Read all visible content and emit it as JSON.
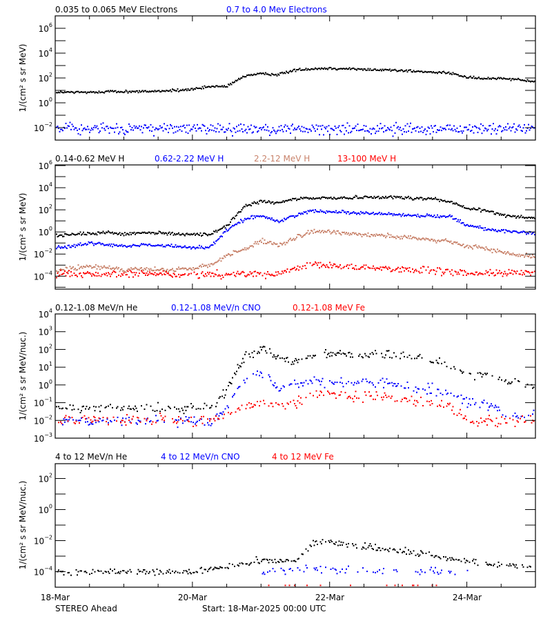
{
  "chart_data": [
    {
      "type": "scatter",
      "panel": "electrons",
      "ylabel": "1/(cm² s sr MeV)",
      "yscale": "log",
      "ylim": [
        0.001,
        10000000.0
      ],
      "ytick_exponents": [
        6,
        4,
        2,
        0,
        -2
      ],
      "xlim": [
        "2025-03-18T00:00",
        "2025-03-25T00:00"
      ],
      "x": [
        "2025-03-18T00:00",
        "2025-03-18T06:00",
        "2025-03-18T12:00",
        "2025-03-18T18:00",
        "2025-03-19T00:00",
        "2025-03-19T06:00",
        "2025-03-19T12:00",
        "2025-03-19T18:00",
        "2025-03-20T00:00",
        "2025-03-20T06:00",
        "2025-03-20T12:00",
        "2025-03-20T18:00",
        "2025-03-21T00:00",
        "2025-03-21T06:00",
        "2025-03-21T12:00",
        "2025-03-21T18:00",
        "2025-03-22T00:00",
        "2025-03-22T06:00",
        "2025-03-22T12:00",
        "2025-03-22T18:00",
        "2025-03-23T00:00",
        "2025-03-23T06:00",
        "2025-03-23T12:00",
        "2025-03-23T18:00",
        "2025-03-24T00:00",
        "2025-03-24T06:00",
        "2025-03-24T12:00",
        "2025-03-24T18:00",
        "2025-03-25T00:00"
      ],
      "series": [
        {
          "name": "0.035 to 0.065 MeV Electrons",
          "color": "#000000",
          "values": [
            7,
            7,
            7,
            8,
            8,
            8,
            9,
            10,
            12,
            20,
            21,
            150,
            210,
            190,
            450,
            550,
            600,
            550,
            480,
            450,
            420,
            330,
            280,
            250,
            110,
            85,
            100,
            75,
            50
          ]
        },
        {
          "name": "0.7 to 4.0 Mev Electrons",
          "color": "#0000ff",
          "values": [
            0.008,
            0.008,
            0.008,
            0.008,
            0.008,
            0.008,
            0.008,
            0.008,
            0.008,
            0.008,
            0.008,
            0.008,
            0.008,
            0.008,
            0.008,
            0.008,
            0.008,
            0.008,
            0.008,
            0.008,
            0.008,
            0.008,
            0.008,
            0.008,
            0.008,
            0.008,
            0.008,
            0.008,
            0.008
          ]
        }
      ]
    },
    {
      "type": "scatter",
      "panel": "protons",
      "ylabel": "1/(cm² s sr MeV)",
      "yscale": "log",
      "ylim": [
        6.8e-06,
        1150000.0
      ],
      "ytick_exponents": [
        6,
        4,
        2,
        0,
        -2,
        -4
      ],
      "xlim": [
        "2025-03-18T00:00",
        "2025-03-25T00:00"
      ],
      "x": [
        "2025-03-18T00:00",
        "2025-03-18T06:00",
        "2025-03-18T12:00",
        "2025-03-18T18:00",
        "2025-03-19T00:00",
        "2025-03-19T06:00",
        "2025-03-19T12:00",
        "2025-03-19T18:00",
        "2025-03-20T00:00",
        "2025-03-20T06:00",
        "2025-03-20T12:00",
        "2025-03-20T18:00",
        "2025-03-21T00:00",
        "2025-03-21T06:00",
        "2025-03-21T12:00",
        "2025-03-21T18:00",
        "2025-03-22T00:00",
        "2025-03-22T06:00",
        "2025-03-22T12:00",
        "2025-03-22T18:00",
        "2025-03-23T00:00",
        "2025-03-23T06:00",
        "2025-03-23T12:00",
        "2025-03-23T18:00",
        "2025-03-24T00:00",
        "2025-03-24T06:00",
        "2025-03-24T12:00",
        "2025-03-24T18:00",
        "2025-03-25T00:00"
      ],
      "series": [
        {
          "name": "0.14-0.62 MeV H",
          "color": "#000000",
          "values": [
            0.5,
            0.6,
            0.7,
            0.9,
            0.6,
            0.8,
            0.8,
            0.7,
            0.6,
            0.6,
            4,
            200,
            600,
            400,
            1000,
            1100,
            1200,
            1200,
            1400,
            1400,
            1300,
            1100,
            1000,
            500,
            130,
            90,
            35,
            25,
            17
          ]
        },
        {
          "name": "0.62-2.22 MeV H",
          "color": "#0000ff",
          "values": [
            0.04,
            0.05,
            0.1,
            0.07,
            0.05,
            0.07,
            0.06,
            0.05,
            0.04,
            0.04,
            1.5,
            14,
            30,
            8,
            35,
            80,
            70,
            60,
            50,
            45,
            35,
            30,
            28,
            25,
            4,
            2,
            1.2,
            0.9,
            0.7
          ]
        },
        {
          "name": "2.2-12 MeV H",
          "color": "#c8826a",
          "values": [
            0.0003,
            0.0005,
            0.0007,
            0.0006,
            0.0004,
            0.0004,
            0.00035,
            0.00035,
            0.0005,
            0.001,
            0.008,
            0.03,
            0.15,
            0.06,
            0.3,
            1.1,
            1.0,
            0.8,
            0.6,
            0.5,
            0.35,
            0.25,
            0.18,
            0.12,
            0.05,
            0.035,
            0.014,
            0.009,
            0.006
          ]
        },
        {
          "name": "13-100 MeV H",
          "color": "#ff0000",
          "values": [
            0.00015,
            0.00015,
            0.00015,
            0.00015,
            0.00015,
            0.00015,
            0.00015,
            0.00015,
            0.00015,
            0.00015,
            0.00015,
            0.00015,
            0.00015,
            0.00015,
            0.0005,
            0.001,
            0.0009,
            0.0008,
            0.0006,
            0.0005,
            0.0004,
            0.00035,
            0.0003,
            0.0002,
            0.0002,
            0.0002,
            0.0002,
            0.0002,
            0.0002
          ]
        }
      ]
    },
    {
      "type": "scatter",
      "panel": "low-energy ions",
      "ylabel": "1/(cm² s sr MeV/nuc.)",
      "yscale": "log",
      "ylim": [
        0.001,
        10000.0
      ],
      "ytick_exponents": [
        4,
        3,
        2,
        1,
        0,
        -1,
        -2,
        -3
      ],
      "xlim": [
        "2025-03-18T00:00",
        "2025-03-25T00:00"
      ],
      "x": [
        "2025-03-18T00:00",
        "2025-03-18T06:00",
        "2025-03-18T12:00",
        "2025-03-18T18:00",
        "2025-03-19T00:00",
        "2025-03-19T06:00",
        "2025-03-19T12:00",
        "2025-03-19T18:00",
        "2025-03-20T00:00",
        "2025-03-20T06:00",
        "2025-03-20T12:00",
        "2025-03-20T18:00",
        "2025-03-21T00:00",
        "2025-03-21T06:00",
        "2025-03-21T12:00",
        "2025-03-21T18:00",
        "2025-03-22T00:00",
        "2025-03-22T06:00",
        "2025-03-22T12:00",
        "2025-03-22T18:00",
        "2025-03-23T00:00",
        "2025-03-23T06:00",
        "2025-03-23T12:00",
        "2025-03-23T18:00",
        "2025-03-24T00:00",
        "2025-03-24T06:00",
        "2025-03-24T12:00",
        "2025-03-24T18:00",
        "2025-03-25T00:00"
      ],
      "series": [
        {
          "name": "0.12-1.08 MeV/n He",
          "color": "#000000",
          "values": [
            0.05,
            0.05,
            0.05,
            0.05,
            0.05,
            0.05,
            0.05,
            0.05,
            0.05,
            0.05,
            0.5,
            40,
            120,
            30,
            25,
            55,
            60,
            55,
            50,
            50,
            45,
            38,
            25,
            15,
            4,
            3.5,
            1.8,
            1.3,
            0.85
          ]
        },
        {
          "name": "0.12-1.08 MeV/n CNO",
          "color": "#0000ff",
          "values": [
            0.01,
            0.01,
            0.01,
            0.01,
            0.01,
            0.01,
            0.01,
            0.01,
            0.01,
            0.01,
            0.05,
            2,
            5,
            0.7,
            1.5,
            1.8,
            1.5,
            1.3,
            1.2,
            1.2,
            1.0,
            0.8,
            0.55,
            0.35,
            0.1,
            0.08,
            0.03,
            0.02,
            0.02
          ]
        },
        {
          "name": "0.12-1.08 MeV Fe",
          "color": "#ff0000",
          "values": [
            0.01,
            0.01,
            0.01,
            0.01,
            0.01,
            0.01,
            0.01,
            0.01,
            0.01,
            0.01,
            0.02,
            0.05,
            0.1,
            0.07,
            0.08,
            0.3,
            0.28,
            0.25,
            0.22,
            0.2,
            0.15,
            0.12,
            0.08,
            0.06,
            0.01,
            0.01,
            0.01,
            0.01,
            0.01
          ]
        }
      ]
    },
    {
      "type": "scatter",
      "panel": "high-energy ions",
      "ylabel": "1/(cm² s sr MeV/nuc.)",
      "yscale": "log",
      "ylim": [
        1e-05,
        900.0
      ],
      "ytick_exponents": [
        2,
        0,
        -2,
        -4
      ],
      "xlim": [
        "2025-03-18T00:00",
        "2025-03-25T00:00"
      ],
      "xtick_labels": [
        "18-Mar",
        "20-Mar",
        "22-Mar",
        "24-Mar"
      ],
      "x": [
        "2025-03-18T00:00",
        "2025-03-18T06:00",
        "2025-03-18T12:00",
        "2025-03-18T18:00",
        "2025-03-19T00:00",
        "2025-03-19T06:00",
        "2025-03-19T12:00",
        "2025-03-19T18:00",
        "2025-03-20T00:00",
        "2025-03-20T06:00",
        "2025-03-20T12:00",
        "2025-03-20T18:00",
        "2025-03-21T00:00",
        "2025-03-21T06:00",
        "2025-03-21T12:00",
        "2025-03-21T18:00",
        "2025-03-22T00:00",
        "2025-03-22T06:00",
        "2025-03-22T12:00",
        "2025-03-22T18:00",
        "2025-03-23T00:00",
        "2025-03-23T06:00",
        "2025-03-23T12:00",
        "2025-03-23T18:00",
        "2025-03-24T00:00",
        "2025-03-24T06:00",
        "2025-03-24T12:00",
        "2025-03-24T18:00",
        "2025-03-25T00:00"
      ],
      "series": [
        {
          "name": "4 to 12 MeV/n He",
          "color": "#000000",
          "values": [
            0.0001,
            0.0001,
            0.0001,
            0.0001,
            0.0001,
            0.0001,
            0.0001,
            0.0001,
            0.0001,
            0.00015,
            0.0002,
            0.0003,
            0.0006,
            0.0005,
            0.0005,
            0.008,
            0.007,
            0.0055,
            0.004,
            0.003,
            0.0022,
            0.0016,
            0.0013,
            0.0006,
            0.0005,
            0.00035,
            0.0003,
            0.00025,
            0.0002
          ]
        },
        {
          "name": "4 to 12 MeV/n CNO",
          "color": "#0000ff",
          "values": [
            null,
            null,
            null,
            null,
            null,
            null,
            null,
            null,
            null,
            null,
            null,
            null,
            0.0001,
            0.00012,
            0.00015,
            0.00015,
            0.00013,
            0.00012,
            0.00011,
            0.0001,
            0.0001,
            0.0001,
            0.0001,
            0.0001,
            0.0001,
            null,
            null,
            null,
            null
          ]
        },
        {
          "name": "4 to 12 MeV Fe",
          "color": "#ff0000",
          "values": [
            null,
            null,
            null,
            null,
            null,
            null,
            null,
            null,
            null,
            null,
            null,
            null,
            1.3e-05,
            1.3e-05,
            1.3e-05,
            1.3e-05,
            1.3e-05,
            1.3e-05,
            1.3e-05,
            1.3e-05,
            1.3e-05,
            1.3e-05,
            1.3e-05,
            1.3e-05,
            1.3e-05,
            1.3e-05,
            1.3e-05,
            null,
            null
          ]
        }
      ]
    }
  ],
  "footer": {
    "spacecraft": "STEREO Ahead",
    "start": "Start: 18-Mar-2025 00:00 UTC"
  }
}
